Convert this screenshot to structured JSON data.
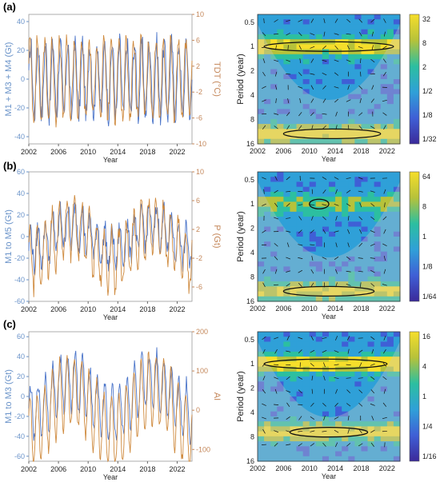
{
  "colors": {
    "series_mass": "#4a74c9",
    "series_driver": "#cf8a3e",
    "axis_left": "#6a93c9",
    "axis_right": "#c4875a",
    "cone": "#c8c8c8",
    "contour": "#111111"
  },
  "chart_data": [
    {
      "panel": "(a)",
      "type": "line",
      "xlabel": "Year",
      "ylabel_left": "M1 + M3 + M4 (Gt)",
      "ylabel_right": "TDT (°C)",
      "xlim": [
        2002,
        2024
      ],
      "ylim_left": [
        -45,
        45
      ],
      "ylim_right": [
        -10,
        10
      ],
      "xticks": [
        "2002",
        "2006",
        "2010",
        "2014",
        "2018",
        "2022"
      ],
      "yticks_left": [
        "40",
        "20",
        "0",
        "-20",
        "-40"
      ],
      "yticks_right": [
        "10",
        "6",
        "2",
        "-2",
        "-6",
        "-10"
      ],
      "series": [
        {
          "axis": "left",
          "amplitude": 25,
          "trend": 0,
          "noise": 8
        },
        {
          "axis": "right",
          "amplitude": 6,
          "trend": 0,
          "noise": 1.5
        }
      ]
    },
    {
      "panel": "(a)",
      "type": "heatmap",
      "xlabel": "Year",
      "ylabel": "Period (year)",
      "xticks": [
        "2002",
        "2006",
        "2010",
        "2014",
        "2018",
        "2022"
      ],
      "yticks": [
        "0.5",
        "1",
        "2",
        "4",
        "8",
        "16"
      ],
      "colorbar": [
        "32",
        "8",
        "2",
        "1/2",
        "1/8",
        "1/32"
      ],
      "power_bands": [
        {
          "period": 1,
          "strength": 0.85
        },
        {
          "period": 12,
          "strength": 0.95
        }
      ],
      "contours": [
        {
          "period_center": 1,
          "x_range": [
            2003,
            2023
          ]
        },
        {
          "period_center": 12,
          "x_range": [
            2006,
            2021
          ]
        }
      ]
    },
    {
      "panel": "(b)",
      "type": "line",
      "xlabel": "Year",
      "ylabel_left": "M1 to M5 (Gt)",
      "ylabel_right": "P (Gt)",
      "xlim": [
        2002,
        2024
      ],
      "ylim_left": [
        -60,
        60
      ],
      "ylim_right": [
        -8,
        10
      ],
      "xticks": [
        "2002",
        "2006",
        "2010",
        "2014",
        "2018",
        "2022"
      ],
      "yticks_left": [
        "60",
        "40",
        "20",
        "0",
        "-20",
        "-40",
        "-60"
      ],
      "yticks_right": [
        "10",
        "6",
        "2",
        "-2",
        "-6"
      ],
      "series": [
        {
          "axis": "left",
          "amplitude": 18,
          "trend": 1,
          "noise": 9
        },
        {
          "axis": "right",
          "amplitude": 4,
          "trend": 1,
          "noise": 1.2
        }
      ]
    },
    {
      "panel": "(b)",
      "type": "heatmap",
      "xlabel": "Year",
      "ylabel": "Period (year)",
      "xticks": [
        "2002",
        "2006",
        "2010",
        "2014",
        "2018",
        "2022"
      ],
      "yticks": [
        "0.5",
        "1",
        "2",
        "4",
        "8",
        "16"
      ],
      "colorbar": [
        "64",
        "8",
        "1",
        "1/8",
        "1/64"
      ],
      "power_bands": [
        {
          "period": 1,
          "strength": 0.55
        },
        {
          "period": 12,
          "strength": 0.8
        }
      ],
      "contours": [
        {
          "period_center": 1,
          "x_range": [
            2010,
            2013
          ]
        },
        {
          "period_center": 12,
          "x_range": [
            2006,
            2020
          ]
        }
      ]
    },
    {
      "panel": "(c)",
      "type": "line",
      "xlabel": "Year",
      "ylabel_left": "M1 to M3 (Gt)",
      "ylabel_right": "AI",
      "xlim": [
        2002,
        2024
      ],
      "ylim_left": [
        -65,
        65
      ],
      "ylim_right": [
        -130,
        200
      ],
      "xticks": [
        "2002",
        "2006",
        "2010",
        "2014",
        "2018",
        "2022"
      ],
      "yticks_left": [
        "60",
        "40",
        "20",
        "0",
        "-20",
        "-40",
        "-60"
      ],
      "yticks_right": [
        "200",
        "100",
        "0",
        "-100"
      ],
      "series": [
        {
          "axis": "left",
          "amplitude": 28,
          "trend": 1,
          "noise": 7
        },
        {
          "axis": "right",
          "amplitude": 90,
          "trend": 1,
          "noise": 15
        }
      ]
    },
    {
      "panel": "(c)",
      "type": "heatmap",
      "xlabel": "Year",
      "ylabel": "Period (year)",
      "xticks": [
        "2002",
        "2006",
        "2010",
        "2014",
        "2018",
        "2022"
      ],
      "yticks": [
        "0.5",
        "1",
        "2",
        "4",
        "8",
        "16"
      ],
      "colorbar": [
        "16",
        "4",
        "1",
        "1/4",
        "1/16"
      ],
      "power_bands": [
        {
          "period": 1,
          "strength": 1.0
        },
        {
          "period": 7,
          "strength": 0.9
        }
      ],
      "contours": [
        {
          "period_center": 1,
          "x_range": [
            2003,
            2022
          ]
        },
        {
          "period_center": 7,
          "x_range": [
            2007,
            2019
          ]
        }
      ]
    }
  ]
}
